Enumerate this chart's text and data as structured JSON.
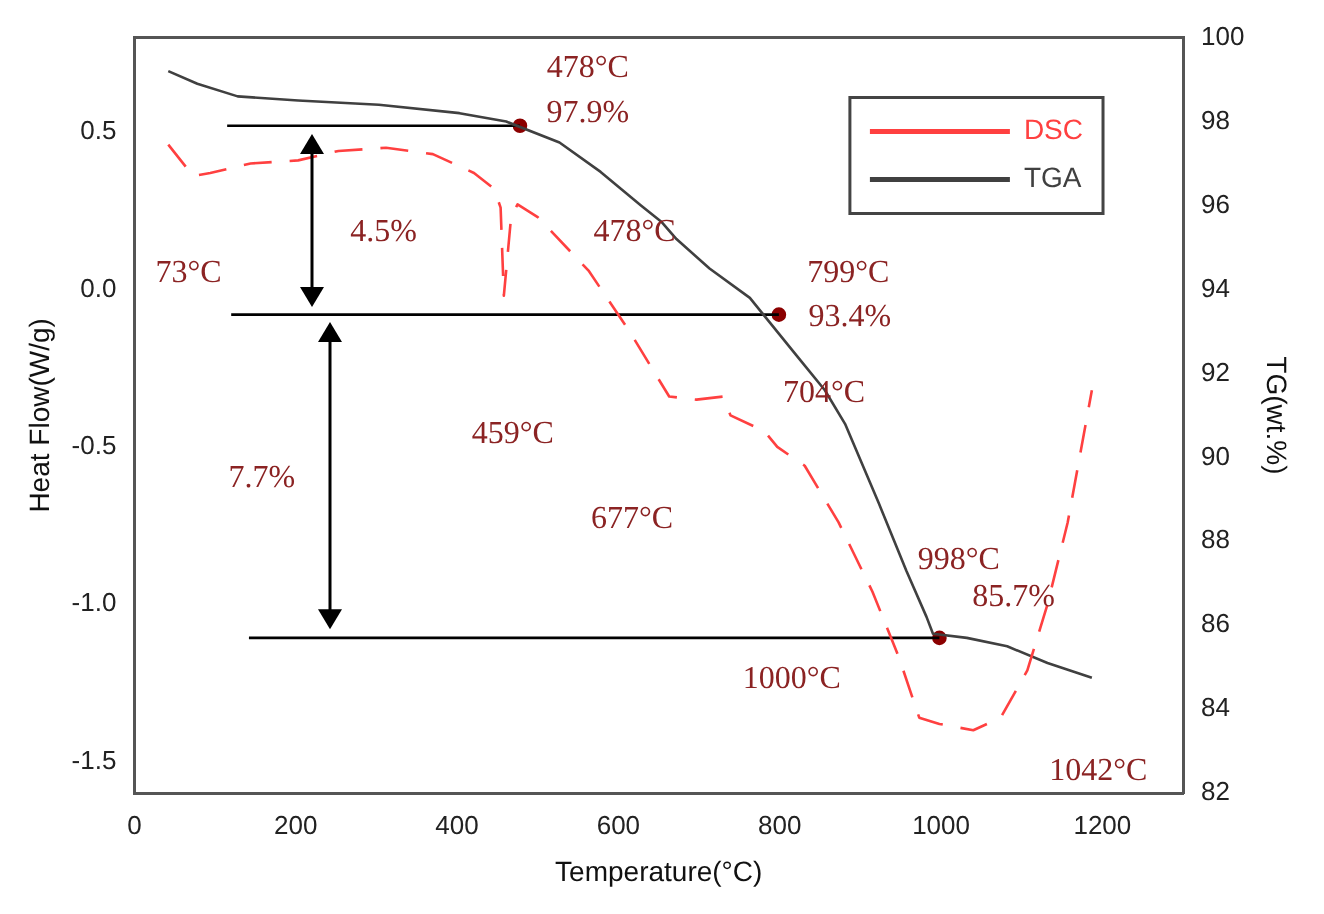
{
  "chart_data": {
    "type": "line",
    "xlabel": "Temperature(°C)",
    "ylabel": "Heat Flow(W/g)",
    "y2label": "TG(wt.%)",
    "xlim": [
      0,
      1300
    ],
    "xticks": [
      0,
      200,
      400,
      600,
      800,
      1000,
      1200
    ],
    "ylim": [
      -1.6,
      0.8
    ],
    "yticks": [
      {
        "value": -1.5,
        "label": "-1.5"
      },
      {
        "value": -1,
        "label": "-1.0"
      },
      {
        "value": -0.5,
        "label": "-0.5"
      },
      {
        "value": 0,
        "label": "0.0"
      },
      {
        "value": 0.5,
        "label": "0.5"
      }
    ],
    "y2lim": [
      82,
      100
    ],
    "y2ticks": [
      82,
      84,
      86,
      88,
      90,
      92,
      94,
      96,
      98,
      100
    ],
    "legend": "top right",
    "series": [
      {
        "name": "DSC",
        "color": "#ff4040",
        "line_style": "dashed",
        "marker": "none",
        "x": [
          42,
          73,
          94,
          144,
          203,
          253,
          312,
          370,
          421,
          446,
          454,
          458,
          467,
          475,
          500,
          563,
          613,
          663,
          697,
          730,
          739,
          781,
          797,
          831,
          873,
          915,
          948,
          969,
          973,
          998,
          1040,
          1074,
          1107,
          1132,
          1157,
          1187
        ],
        "values": [
          0.46,
          0.36,
          0.37,
          0.4,
          0.41,
          0.44,
          0.45,
          0.43,
          0.37,
          0.32,
          0.26,
          -0.02,
          0.23,
          0.27,
          0.23,
          0.06,
          -0.13,
          -0.34,
          -0.35,
          -0.34,
          -0.4,
          -0.45,
          -0.5,
          -0.56,
          -0.74,
          -0.96,
          -1.17,
          -1.33,
          -1.36,
          -1.38,
          -1.4,
          -1.36,
          -1.21,
          -1,
          -0.74,
          -0.32
        ]
      },
      {
        "name": "TGA",
        "axis": "y2",
        "color": "#404040",
        "line_style": "solid",
        "marker": "none",
        "x": [
          42,
          78,
          128,
          203,
          303,
          403,
          461,
          527,
          578,
          628,
          654,
          672,
          713,
          763,
          822,
          856,
          881,
          923,
          957,
          982,
          990,
          1032,
          1082,
          1132,
          1187
        ],
        "values": [
          99.2,
          98.9,
          98.6,
          98.5,
          98.4,
          98.2,
          98,
          97.5,
          96.8,
          96,
          95.6,
          95.2,
          94.5,
          93.8,
          92.4,
          91.6,
          90.8,
          88.9,
          87.3,
          86.2,
          85.8,
          85.7,
          85.5,
          85.1,
          84.75
        ]
      },
      {
        "axis": "y2",
        "color": "#000000",
        "line_style": "solid",
        "marker": "none",
        "x": [
          115,
          478
        ],
        "values": [
          97.9,
          97.9
        ]
      },
      {
        "axis": "y2",
        "color": "#000000",
        "line_style": "solid",
        "marker": "none",
        "x": [
          120,
          799
        ],
        "values": [
          93.4,
          93.4
        ]
      },
      {
        "axis": "y2",
        "color": "#000000",
        "line_style": "solid",
        "marker": "none",
        "x": [
          142,
          998
        ],
        "values": [
          85.7,
          85.7
        ]
      },
      {
        "type": "scatter",
        "axis": "y2",
        "color": "#8b0000",
        "marker": "circle",
        "x": [
          478,
          799,
          998
        ],
        "values": [
          97.9,
          93.4,
          85.7
        ]
      }
    ],
    "annotations": [
      "478°C",
      "97.9%",
      "73°C",
      "4.5%",
      "478°C",
      "459°C",
      "677°C",
      "704°C",
      "799°C",
      "93.4%",
      "7.7%",
      "998°C",
      "85.7%",
      "1000°C",
      "1042°C"
    ]
  }
}
